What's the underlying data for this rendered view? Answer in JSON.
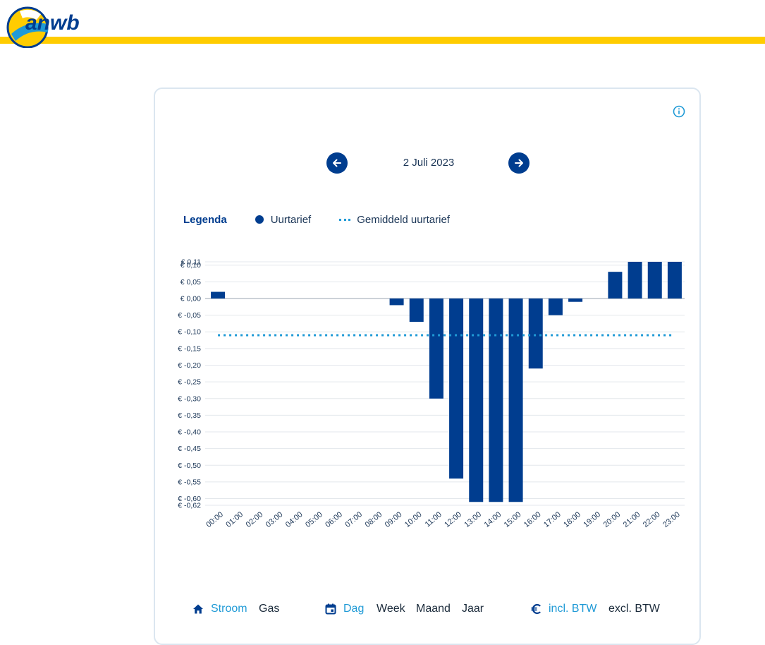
{
  "header": {
    "logo_text": "anwb",
    "brand_yellow": "#ffcc00",
    "brand_blue": "#003d8f"
  },
  "card": {
    "date": "2 Juli 2023",
    "prev_icon": "arrow-left-icon",
    "next_icon": "arrow-right-icon",
    "info_icon": "info-icon"
  },
  "legend": {
    "title": "Legenda",
    "items": [
      {
        "label": "Uurtarief",
        "color": "#003d8f"
      },
      {
        "label": "Gemiddeld uurtarief",
        "color": "#1f9ad6"
      }
    ]
  },
  "chart_data": {
    "type": "bar",
    "title": "",
    "xlabel": "",
    "ylabel": "",
    "ylim": [
      -0.62,
      0.11
    ],
    "y_ticks": [
      0.11,
      0.1,
      0.05,
      0.0,
      -0.05,
      -0.1,
      -0.15,
      -0.2,
      -0.25,
      -0.3,
      -0.35,
      -0.4,
      -0.45,
      -0.5,
      -0.55,
      -0.6,
      -0.62
    ],
    "y_tick_labels": [
      "€ 0,11",
      "€ 0,10",
      "€ 0,05",
      "€ 0,00",
      "€ -0,05",
      "€ -0,10",
      "€ -0,15",
      "€ -0,20",
      "€ -0,25",
      "€ -0,30",
      "€ -0,35",
      "€ -0,40",
      "€ -0,45",
      "€ -0,50",
      "€ -0,55",
      "€ -0,60",
      "€ -0,62"
    ],
    "categories": [
      "00:00",
      "01:00",
      "02:00",
      "03:00",
      "04:00",
      "05:00",
      "06:00",
      "07:00",
      "08:00",
      "09:00",
      "10:00",
      "11:00",
      "12:00",
      "13:00",
      "14:00",
      "15:00",
      "16:00",
      "17:00",
      "18:00",
      "19:00",
      "20:00",
      "21:00",
      "22:00",
      "23:00"
    ],
    "series": [
      {
        "name": "Uurtarief",
        "values": [
          0.02,
          0,
          0,
          0,
          0,
          0,
          0,
          0,
          0,
          -0.02,
          -0.07,
          -0.3,
          -0.54,
          -0.61,
          -0.61,
          -0.61,
          -0.21,
          -0.05,
          -0.01,
          0,
          0.08,
          0.11,
          0.11,
          0.11
        ]
      },
      {
        "name": "Gemiddeld uurtarief",
        "value": -0.11
      }
    ],
    "bar_color": "#003d8f",
    "avg_color": "#1f9ad6"
  },
  "controls": {
    "energy": {
      "icon": "home-icon",
      "options": [
        "Stroom",
        "Gas"
      ],
      "selected": "Stroom"
    },
    "period": {
      "icon": "calendar-icon",
      "options": [
        "Dag",
        "Week",
        "Maand",
        "Jaar"
      ],
      "selected": "Dag"
    },
    "vat": {
      "icon": "euro-icon",
      "options": [
        "incl. BTW",
        "excl. BTW"
      ],
      "selected": "incl. BTW"
    }
  }
}
